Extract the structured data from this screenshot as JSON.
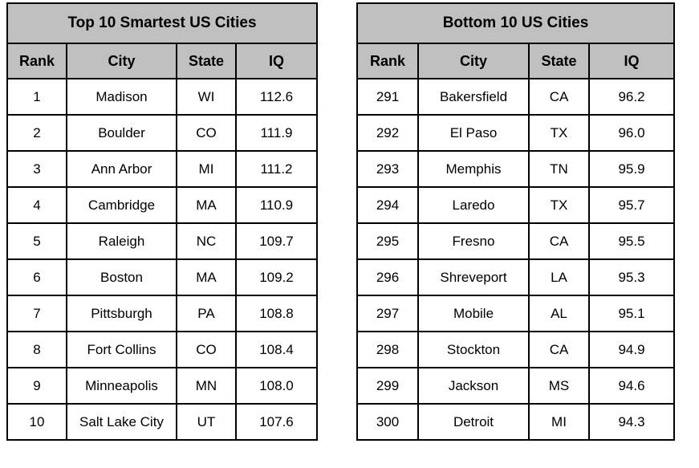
{
  "colors": {
    "header_background": "#c0c0c0",
    "border": "#000000",
    "cell_background": "#ffffff",
    "text": "#000000"
  },
  "chart_data": [
    {
      "type": "table",
      "title": "Top 10 Smartest US Cities",
      "columns": [
        "Rank",
        "City",
        "State",
        "IQ"
      ],
      "rows": [
        [
          "1",
          "Madison",
          "WI",
          "112.6"
        ],
        [
          "2",
          "Boulder",
          "CO",
          "111.9"
        ],
        [
          "3",
          "Ann Arbor",
          "MI",
          "111.2"
        ],
        [
          "4",
          "Cambridge",
          "MA",
          "110.9"
        ],
        [
          "5",
          "Raleigh",
          "NC",
          "109.7"
        ],
        [
          "6",
          "Boston",
          "MA",
          "109.2"
        ],
        [
          "7",
          "Pittsburgh",
          "PA",
          "108.8"
        ],
        [
          "8",
          "Fort Collins",
          "CO",
          "108.4"
        ],
        [
          "9",
          "Minneapolis",
          "MN",
          "108.0"
        ],
        [
          "10",
          "Salt Lake City",
          "UT",
          "107.6"
        ]
      ]
    },
    {
      "type": "table",
      "title": "Bottom 10 US Cities",
      "columns": [
        "Rank",
        "City",
        "State",
        "IQ"
      ],
      "rows": [
        [
          "291",
          "Bakersfield",
          "CA",
          "96.2"
        ],
        [
          "292",
          "El Paso",
          "TX",
          "96.0"
        ],
        [
          "293",
          "Memphis",
          "TN",
          "95.9"
        ],
        [
          "294",
          "Laredo",
          "TX",
          "95.7"
        ],
        [
          "295",
          "Fresno",
          "CA",
          "95.5"
        ],
        [
          "296",
          "Shreveport",
          "LA",
          "95.3"
        ],
        [
          "297",
          "Mobile",
          "AL",
          "95.1"
        ],
        [
          "298",
          "Stockton",
          "CA",
          "94.9"
        ],
        [
          "299",
          "Jackson",
          "MS",
          "94.6"
        ],
        [
          "300",
          "Detroit",
          "MI",
          "94.3"
        ]
      ]
    }
  ]
}
